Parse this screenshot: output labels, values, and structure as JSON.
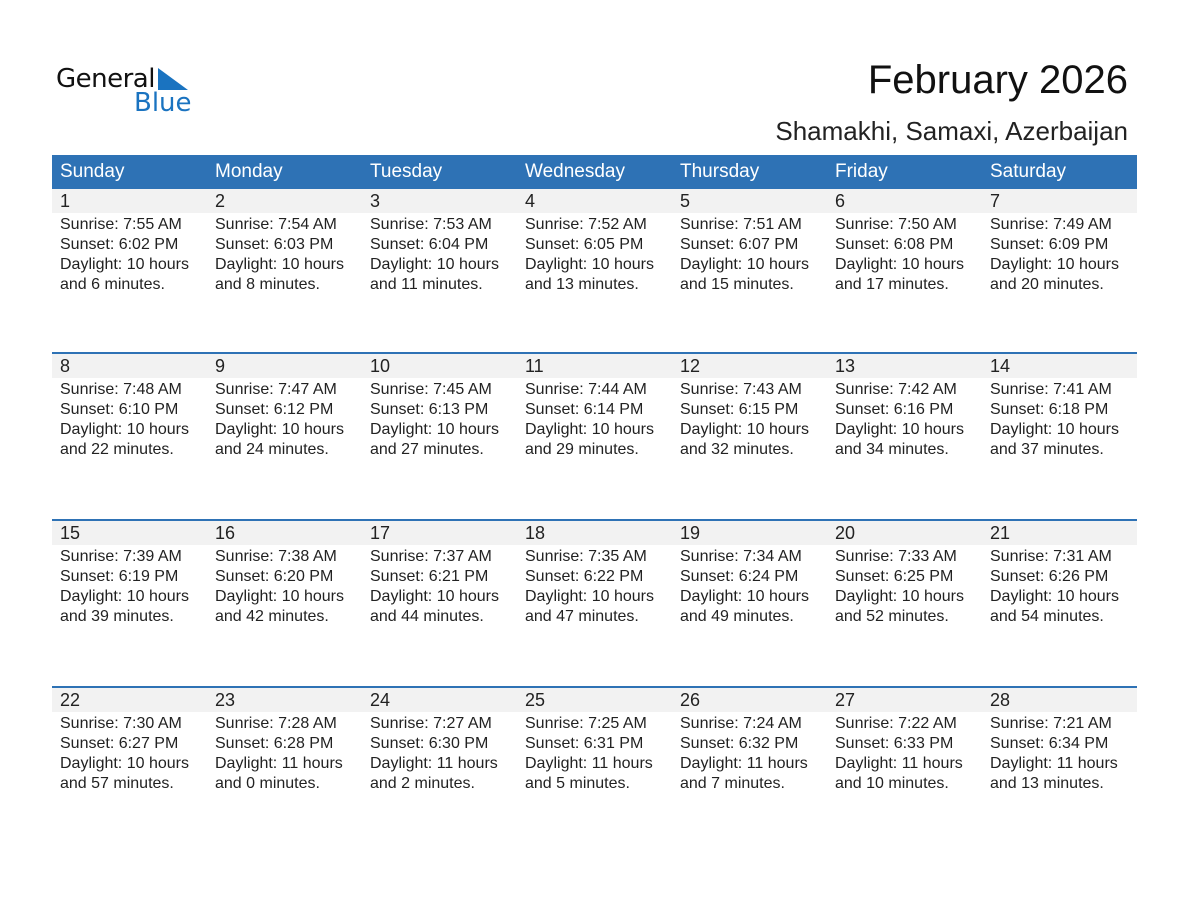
{
  "logo": {
    "line1": "General",
    "line2": "Blue",
    "accent": "#1a73c0"
  },
  "title": "February 2026",
  "subtitle": "Shamakhi, Samaxi, Azerbaijan",
  "colors": {
    "header": "#2e72b5",
    "day_row": "#f2f2f2"
  },
  "weekdays": [
    "Sunday",
    "Monday",
    "Tuesday",
    "Wednesday",
    "Thursday",
    "Friday",
    "Saturday"
  ],
  "weeks": [
    [
      {
        "day": "1",
        "sunrise": "Sunrise: 7:55 AM",
        "sunset": "Sunset: 6:02 PM",
        "daylight": "Daylight: 10 hours",
        "minutes": "and 6 minutes."
      },
      {
        "day": "2",
        "sunrise": "Sunrise: 7:54 AM",
        "sunset": "Sunset: 6:03 PM",
        "daylight": "Daylight: 10 hours",
        "minutes": "and 8 minutes."
      },
      {
        "day": "3",
        "sunrise": "Sunrise: 7:53 AM",
        "sunset": "Sunset: 6:04 PM",
        "daylight": "Daylight: 10 hours",
        "minutes": "and 11 minutes."
      },
      {
        "day": "4",
        "sunrise": "Sunrise: 7:52 AM",
        "sunset": "Sunset: 6:05 PM",
        "daylight": "Daylight: 10 hours",
        "minutes": "and 13 minutes."
      },
      {
        "day": "5",
        "sunrise": "Sunrise: 7:51 AM",
        "sunset": "Sunset: 6:07 PM",
        "daylight": "Daylight: 10 hours",
        "minutes": "and 15 minutes."
      },
      {
        "day": "6",
        "sunrise": "Sunrise: 7:50 AM",
        "sunset": "Sunset: 6:08 PM",
        "daylight": "Daylight: 10 hours",
        "minutes": "and 17 minutes."
      },
      {
        "day": "7",
        "sunrise": "Sunrise: 7:49 AM",
        "sunset": "Sunset: 6:09 PM",
        "daylight": "Daylight: 10 hours",
        "minutes": "and 20 minutes."
      }
    ],
    [
      {
        "day": "8",
        "sunrise": "Sunrise: 7:48 AM",
        "sunset": "Sunset: 6:10 PM",
        "daylight": "Daylight: 10 hours",
        "minutes": "and 22 minutes."
      },
      {
        "day": "9",
        "sunrise": "Sunrise: 7:47 AM",
        "sunset": "Sunset: 6:12 PM",
        "daylight": "Daylight: 10 hours",
        "minutes": "and 24 minutes."
      },
      {
        "day": "10",
        "sunrise": "Sunrise: 7:45 AM",
        "sunset": "Sunset: 6:13 PM",
        "daylight": "Daylight: 10 hours",
        "minutes": "and 27 minutes."
      },
      {
        "day": "11",
        "sunrise": "Sunrise: 7:44 AM",
        "sunset": "Sunset: 6:14 PM",
        "daylight": "Daylight: 10 hours",
        "minutes": "and 29 minutes."
      },
      {
        "day": "12",
        "sunrise": "Sunrise: 7:43 AM",
        "sunset": "Sunset: 6:15 PM",
        "daylight": "Daylight: 10 hours",
        "minutes": "and 32 minutes."
      },
      {
        "day": "13",
        "sunrise": "Sunrise: 7:42 AM",
        "sunset": "Sunset: 6:16 PM",
        "daylight": "Daylight: 10 hours",
        "minutes": "and 34 minutes."
      },
      {
        "day": "14",
        "sunrise": "Sunrise: 7:41 AM",
        "sunset": "Sunset: 6:18 PM",
        "daylight": "Daylight: 10 hours",
        "minutes": "and 37 minutes."
      }
    ],
    [
      {
        "day": "15",
        "sunrise": "Sunrise: 7:39 AM",
        "sunset": "Sunset: 6:19 PM",
        "daylight": "Daylight: 10 hours",
        "minutes": "and 39 minutes."
      },
      {
        "day": "16",
        "sunrise": "Sunrise: 7:38 AM",
        "sunset": "Sunset: 6:20 PM",
        "daylight": "Daylight: 10 hours",
        "minutes": "and 42 minutes."
      },
      {
        "day": "17",
        "sunrise": "Sunrise: 7:37 AM",
        "sunset": "Sunset: 6:21 PM",
        "daylight": "Daylight: 10 hours",
        "minutes": "and 44 minutes."
      },
      {
        "day": "18",
        "sunrise": "Sunrise: 7:35 AM",
        "sunset": "Sunset: 6:22 PM",
        "daylight": "Daylight: 10 hours",
        "minutes": "and 47 minutes."
      },
      {
        "day": "19",
        "sunrise": "Sunrise: 7:34 AM",
        "sunset": "Sunset: 6:24 PM",
        "daylight": "Daylight: 10 hours",
        "minutes": "and 49 minutes."
      },
      {
        "day": "20",
        "sunrise": "Sunrise: 7:33 AM",
        "sunset": "Sunset: 6:25 PM",
        "daylight": "Daylight: 10 hours",
        "minutes": "and 52 minutes."
      },
      {
        "day": "21",
        "sunrise": "Sunrise: 7:31 AM",
        "sunset": "Sunset: 6:26 PM",
        "daylight": "Daylight: 10 hours",
        "minutes": "and 54 minutes."
      }
    ],
    [
      {
        "day": "22",
        "sunrise": "Sunrise: 7:30 AM",
        "sunset": "Sunset: 6:27 PM",
        "daylight": "Daylight: 10 hours",
        "minutes": "and 57 minutes."
      },
      {
        "day": "23",
        "sunrise": "Sunrise: 7:28 AM",
        "sunset": "Sunset: 6:28 PM",
        "daylight": "Daylight: 11 hours",
        "minutes": "and 0 minutes."
      },
      {
        "day": "24",
        "sunrise": "Sunrise: 7:27 AM",
        "sunset": "Sunset: 6:30 PM",
        "daylight": "Daylight: 11 hours",
        "minutes": "and 2 minutes."
      },
      {
        "day": "25",
        "sunrise": "Sunrise: 7:25 AM",
        "sunset": "Sunset: 6:31 PM",
        "daylight": "Daylight: 11 hours",
        "minutes": "and 5 minutes."
      },
      {
        "day": "26",
        "sunrise": "Sunrise: 7:24 AM",
        "sunset": "Sunset: 6:32 PM",
        "daylight": "Daylight: 11 hours",
        "minutes": "and 7 minutes."
      },
      {
        "day": "27",
        "sunrise": "Sunrise: 7:22 AM",
        "sunset": "Sunset: 6:33 PM",
        "daylight": "Daylight: 11 hours",
        "minutes": "and 10 minutes."
      },
      {
        "day": "28",
        "sunrise": "Sunrise: 7:21 AM",
        "sunset": "Sunset: 6:34 PM",
        "daylight": "Daylight: 11 hours",
        "minutes": "and 13 minutes."
      }
    ]
  ]
}
